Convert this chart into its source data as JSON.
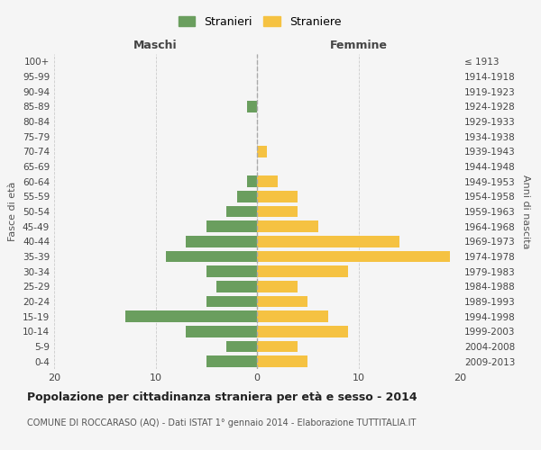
{
  "age_groups": [
    "100+",
    "95-99",
    "90-94",
    "85-89",
    "80-84",
    "75-79",
    "70-74",
    "65-69",
    "60-64",
    "55-59",
    "50-54",
    "45-49",
    "40-44",
    "35-39",
    "30-34",
    "25-29",
    "20-24",
    "15-19",
    "10-14",
    "5-9",
    "0-4"
  ],
  "birth_years": [
    "≤ 1913",
    "1914-1918",
    "1919-1923",
    "1924-1928",
    "1929-1933",
    "1934-1938",
    "1939-1943",
    "1944-1948",
    "1949-1953",
    "1954-1958",
    "1959-1963",
    "1964-1968",
    "1969-1973",
    "1974-1978",
    "1979-1983",
    "1984-1988",
    "1989-1993",
    "1994-1998",
    "1999-2003",
    "2004-2008",
    "2009-2013"
  ],
  "maschi": [
    0,
    0,
    0,
    1,
    0,
    0,
    0,
    0,
    1,
    2,
    3,
    5,
    7,
    9,
    5,
    4,
    5,
    13,
    7,
    3,
    5
  ],
  "femmine": [
    0,
    0,
    0,
    0,
    0,
    0,
    1,
    0,
    2,
    4,
    4,
    6,
    14,
    19,
    9,
    4,
    5,
    7,
    9,
    4,
    5
  ],
  "color_maschi": "#6a9e5e",
  "color_femmine": "#f5c242",
  "title": "Popolazione per cittadinanza straniera per età e sesso - 2014",
  "subtitle": "COMUNE DI ROCCARASO (AQ) - Dati ISTAT 1° gennaio 2014 - Elaborazione TUTTITALIA.IT",
  "legend_maschi": "Stranieri",
  "legend_femmine": "Straniere",
  "xlabel_left": "Maschi",
  "xlabel_right": "Femmine",
  "ylabel_left": "Fasce di età",
  "ylabel_right": "Anni di nascita",
  "xlim": 20,
  "bg_color": "#f5f5f5",
  "grid_color": "#cccccc"
}
